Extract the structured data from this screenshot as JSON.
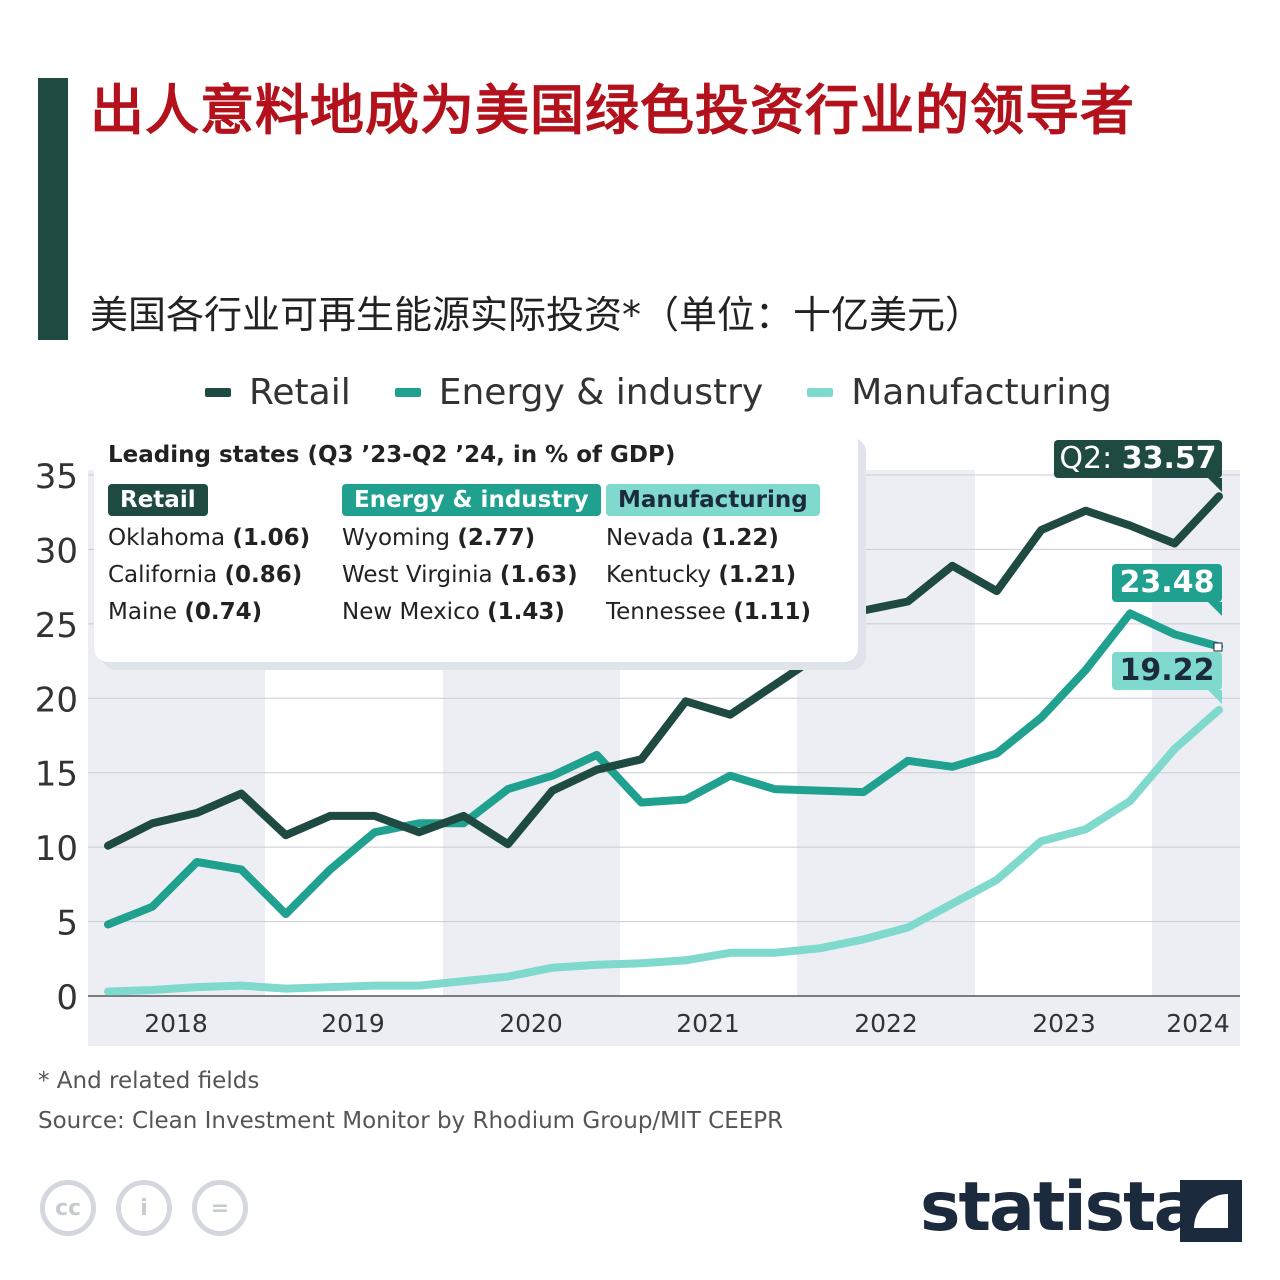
{
  "title": "出人意料地成为美国绿色投资行业的领导者",
  "subtitle": "美国各行业可再生能源实际投资*（单位：十亿美元）",
  "legend": [
    {
      "label": "Retail",
      "color": "#1e4a42"
    },
    {
      "label": "Energy & industry",
      "color": "#20a08e"
    },
    {
      "label": "Manufacturing",
      "color": "#7fd9cd"
    }
  ],
  "infobox": {
    "title": "Leading states (Q3 ’23-Q2 ’24, in % of GDP)",
    "columns": [
      {
        "tag": "Retail",
        "tag_bg": "#1e4a42",
        "tag_fg": "#ffffff",
        "rows": [
          {
            "state": "Oklahoma",
            "value": "(1.06)"
          },
          {
            "state": "California",
            "value": "(0.86)"
          },
          {
            "state": "Maine",
            "value": "(0.74)"
          }
        ]
      },
      {
        "tag": "Energy & industry",
        "tag_bg": "#20a08e",
        "tag_fg": "#ffffff",
        "rows": [
          {
            "state": "Wyoming",
            "value": "(2.77)"
          },
          {
            "state": "West Virginia",
            "value": "(1.63)"
          },
          {
            "state": "New Mexico",
            "value": "(1.43)"
          }
        ]
      },
      {
        "tag": "Manufacturing",
        "tag_bg": "#7fd9cd",
        "tag_fg": "#1b2a3d",
        "rows": [
          {
            "state": "Nevada",
            "value": "(1.22)"
          },
          {
            "state": "Kentucky",
            "value": "(1.21)"
          },
          {
            "state": "Tennessee",
            "value": "(1.11)"
          }
        ]
      }
    ]
  },
  "chart_data": {
    "type": "line",
    "x_labels": [
      "2018",
      "2019",
      "2020",
      "2021",
      "2022",
      "2023",
      "2024"
    ],
    "ylim": [
      0,
      35
    ],
    "yticks": [
      0,
      5,
      10,
      15,
      20,
      25,
      30,
      35
    ],
    "grid": true,
    "legend_position": "top",
    "series": [
      {
        "name": "Retail",
        "color": "#1e4a42",
        "values": [
          10.1,
          11.6,
          12.3,
          13.6,
          10.8,
          12.1,
          12.1,
          11.0,
          12.1,
          10.2,
          13.8,
          15.2,
          15.9,
          19.8,
          18.9,
          20.9,
          22.9,
          25.9,
          26.5,
          28.9,
          27.2,
          31.3,
          32.6,
          31.6,
          30.4,
          33.57
        ],
        "end_label": "Q2: 33.57",
        "end_label_prefix": "Q2:",
        "end_label_value": "33.57"
      },
      {
        "name": "Energy & industry",
        "color": "#20a08e",
        "values": [
          4.8,
          6.0,
          9.0,
          8.5,
          5.5,
          8.5,
          11.0,
          11.6,
          11.6,
          13.9,
          14.8,
          16.2,
          13.0,
          13.2,
          14.8,
          13.9,
          13.8,
          13.7,
          15.8,
          15.4,
          16.3,
          18.7,
          21.9,
          25.7,
          24.3,
          23.48
        ],
        "end_label": "23.48"
      },
      {
        "name": "Manufacturing",
        "color": "#7fd9cd",
        "values": [
          0.3,
          0.4,
          0.6,
          0.7,
          0.5,
          0.6,
          0.7,
          0.7,
          1.0,
          1.3,
          1.9,
          2.1,
          2.2,
          2.4,
          2.9,
          2.9,
          3.2,
          3.8,
          4.6,
          6.2,
          7.8,
          10.4,
          11.2,
          13.1,
          16.6,
          19.22
        ],
        "end_label": "19.22"
      }
    ]
  },
  "footnote": "* And related fields",
  "source": "Source: Clean Investment Monitor by Rhodium Group/MIT CEEPR",
  "brand": "statista",
  "cc_icons": [
    "cc-icon",
    "by-icon",
    "nd-icon"
  ]
}
